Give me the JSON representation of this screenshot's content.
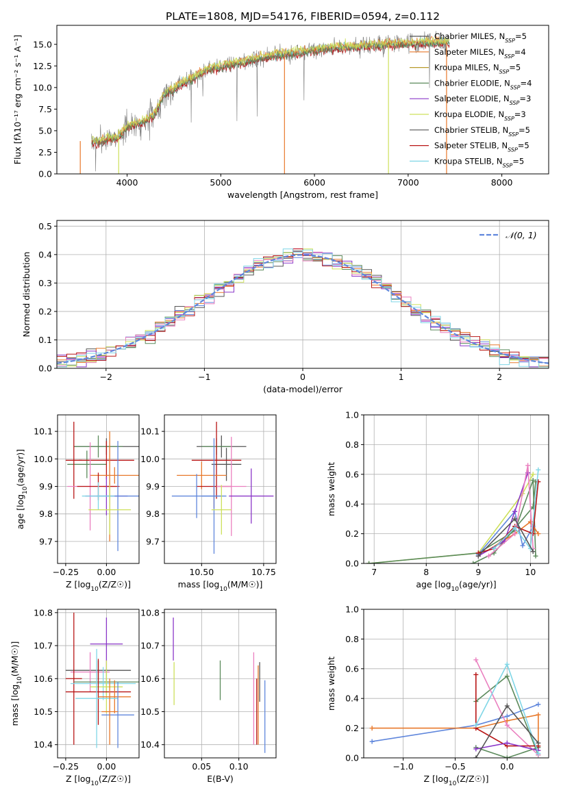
{
  "figure_title": "PLATE=1808, MJD=54176, FIBERID=0594, z=0.112",
  "colors": {
    "orange": "#e8782a",
    "blue": "#5f86dc",
    "green": "#5b8a5b",
    "purple": "#8a36c8",
    "pink": "#ea7fbf",
    "dark": "#555555",
    "red": "#b81414",
    "cyan": "#7fd6e6",
    "yellowgreen": "#cde05a",
    "gold": "#b89a2a"
  },
  "chart_data": [
    {
      "id": "spectrum",
      "type": "line",
      "title": "PLATE=1808, MJD=54176, FIBERID=0594, z=0.112",
      "xlabel": "wavelength [Angstrom, rest frame]",
      "ylabel": "Flux [fλ10⁻¹⁷ erg cm⁻² s⁻¹ A⁻¹]",
      "xlim": [
        3250,
        8500
      ],
      "ylim": [
        0,
        17.2
      ],
      "xticks": [
        "4000",
        "5000",
        "6000",
        "7000",
        "8000"
      ],
      "yticks": [
        "0.0",
        "2.5",
        "5.0",
        "7.5",
        "10.0",
        "12.5",
        "15.0"
      ],
      "grid": false,
      "legend_position": "top-right",
      "legend": [
        {
          "label": "Chabrier MILES, N",
          "sub": "SSP",
          "suffix": "=5",
          "color": "#555555"
        },
        {
          "label": "Salpeter MILES, N",
          "sub": "SSP",
          "suffix": "=4",
          "color": "#e8782a"
        },
        {
          "label": "Kroupa MILES, N",
          "sub": "SSP",
          "suffix": "=5",
          "color": "#b89a2a"
        },
        {
          "label": "Chabrier ELODIE, N",
          "sub": "SSP",
          "suffix": "=4",
          "color": "#5b8a5b"
        },
        {
          "label": "Salpeter ELODIE, N",
          "sub": "SSP",
          "suffix": "=3",
          "color": "#8a36c8"
        },
        {
          "label": "Kroupa ELODIE, N",
          "sub": "SSP",
          "suffix": "=3",
          "color": "#cde05a"
        },
        {
          "label": "Chabrier STELIB, N",
          "sub": "SSP",
          "suffix": "=5",
          "color": "#555555"
        },
        {
          "label": "Salpeter STELIB, N",
          "sub": "SSP",
          "suffix": "=5",
          "color": "#b81414"
        },
        {
          "label": "Kroupa STELIB, N",
          "sub": "SSP",
          "suffix": "=5",
          "color": "#7fd6e6"
        }
      ],
      "continuum": {
        "x": [
          3600,
          3700,
          3800,
          3900,
          4000,
          4100,
          4200,
          4300,
          4400,
          4500,
          4600,
          4700,
          4800,
          4900,
          5000,
          5200,
          5400,
          5600,
          5800,
          6000,
          6200,
          6400,
          6600,
          6800,
          7000,
          7200,
          7400
        ],
        "y": [
          3.8,
          3.6,
          4.1,
          4.2,
          5.5,
          5.8,
          6.2,
          7.0,
          9.3,
          9.8,
          10.6,
          11.0,
          11.8,
          12.2,
          12.4,
          12.9,
          13.4,
          13.8,
          14.0,
          14.3,
          14.6,
          14.7,
          14.9,
          15.0,
          15.1,
          15.2,
          15.2
        ]
      },
      "model_series": [
        {
          "color": "#7fd6e6",
          "offset": 0.0
        },
        {
          "color": "#b81414",
          "offset": -0.2
        },
        {
          "color": "#e8782a",
          "offset": 0.15
        },
        {
          "color": "#5b8a5b",
          "offset": -0.1
        },
        {
          "color": "#cde05a",
          "offset": 0.25
        }
      ],
      "spikes": [
        {
          "x": 3500,
          "color": "#e8782a"
        },
        {
          "x": 3910,
          "color": "#cde05a"
        },
        {
          "x": 5680,
          "color": "#e8782a"
        },
        {
          "x": 6790,
          "color": "#cde05a"
        },
        {
          "x": 7410,
          "color": "#e8782a"
        }
      ]
    },
    {
      "id": "residuals",
      "type": "step",
      "xlabel": "(data-model)/error",
      "ylabel": "Normed distribution",
      "xlim": [
        -2.5,
        2.5
      ],
      "ylim": [
        0,
        0.52
      ],
      "xticks": [
        "−2",
        "−1",
        "0",
        "1",
        "2"
      ],
      "yticks": [
        "0.0",
        "0.1",
        "0.2",
        "0.3",
        "0.4",
        "0.5"
      ],
      "grid": true,
      "legend": [
        {
          "label": "𝒩(0, 1)",
          "color": "#5f86dc",
          "style": "dashed"
        }
      ],
      "bin_width": 0.1,
      "series_colors": [
        "#555555",
        "#e8782a",
        "#5f86dc",
        "#5b8a5b",
        "#8a36c8",
        "#ea7fbf",
        "#cde05a",
        "#b81414",
        "#7fd6e6"
      ]
    },
    {
      "id": "age_vs_Z",
      "type": "errorbar",
      "xlabel": "Z [log10(Z/Z☉)]",
      "ylabel": "age [log10(age/yr)]",
      "xlim": [
        -0.3,
        0.2
      ],
      "ylim": [
        9.62,
        10.16
      ],
      "xticks": [
        "−0.25",
        "0.00"
      ],
      "yticks": [
        "9.7",
        "9.8",
        "9.9",
        "10.0",
        "10.1"
      ],
      "grid": true,
      "points": [
        {
          "x": 0.0,
          "y": 10.045,
          "xerr": 0.2,
          "yerr": 0.03,
          "color": "#555555"
        },
        {
          "x": -0.05,
          "y": 10.045,
          "xerr": 0.15,
          "yerr": 0.04,
          "color": "#5b8a5b"
        },
        {
          "x": -0.12,
          "y": 9.98,
          "xerr": 0.12,
          "yerr": 0.05,
          "color": "#5b8a5b"
        },
        {
          "x": -0.2,
          "y": 9.995,
          "xerr": 0.05,
          "yerr": 0.14,
          "color": "#b81414"
        },
        {
          "x": 0.0,
          "y": 9.995,
          "xerr": 0.17,
          "yerr": 0.07,
          "color": "#b81414"
        },
        {
          "x": 0.05,
          "y": 9.94,
          "xerr": 0.15,
          "yerr": 0.03,
          "color": "#e8782a"
        },
        {
          "x": 0.02,
          "y": 9.9,
          "xerr": 0.04,
          "yerr": 0.2,
          "color": "#e8782a"
        },
        {
          "x": -0.1,
          "y": 9.9,
          "xerr": 0.14,
          "yerr": 0.16,
          "color": "#ea7fbf"
        },
        {
          "x": -0.05,
          "y": 9.9,
          "xerr": 0.13,
          "yerr": 0.05,
          "color": "#b81414"
        },
        {
          "x": 0.0,
          "y": 9.865,
          "xerr": 0.13,
          "yerr": 0.07,
          "color": "#8a36c8"
        },
        {
          "x": 0.07,
          "y": 9.865,
          "xerr": 0.13,
          "yerr": 0.2,
          "color": "#5f86dc"
        },
        {
          "x": -0.05,
          "y": 9.865,
          "xerr": 0.1,
          "yerr": 0.05,
          "color": "#7fd6e6"
        },
        {
          "x": 0.02,
          "y": 9.815,
          "xerr": 0.13,
          "yerr": 0.09,
          "color": "#cde05a"
        }
      ]
    },
    {
      "id": "age_vs_mass",
      "type": "errorbar",
      "xlabel": "mass [log10(M/M☉)]",
      "ylabel": "",
      "xlim": [
        10.35,
        10.8
      ],
      "ylim": [
        9.62,
        10.16
      ],
      "xticks": [
        "10.50",
        "10.75"
      ],
      "yticks": [
        "9.7",
        "9.8",
        "9.9",
        "10.0",
        "10.1"
      ],
      "grid": true,
      "points": [
        {
          "x": 10.58,
          "y": 10.045,
          "xerr": 0.1,
          "yerr": 0.04,
          "color": "#555555"
        },
        {
          "x": 10.56,
          "y": 10.045,
          "xerr": 0.06,
          "yerr": 0.03,
          "color": "#5b8a5b"
        },
        {
          "x": 10.6,
          "y": 9.98,
          "xerr": 0.06,
          "yerr": 0.06,
          "color": "#555555"
        },
        {
          "x": 10.56,
          "y": 9.995,
          "xerr": 0.1,
          "yerr": 0.14,
          "color": "#b81414"
        },
        {
          "x": 10.5,
          "y": 9.94,
          "xerr": 0.1,
          "yerr": 0.05,
          "color": "#e8782a"
        },
        {
          "x": 10.55,
          "y": 9.9,
          "xerr": 0.07,
          "yerr": 0.08,
          "color": "#b81414"
        },
        {
          "x": 10.62,
          "y": 9.9,
          "xerr": 0.06,
          "yerr": 0.18,
          "color": "#ea7fbf"
        },
        {
          "x": 10.7,
          "y": 9.865,
          "xerr": 0.09,
          "yerr": 0.1,
          "color": "#8a36c8"
        },
        {
          "x": 10.48,
          "y": 9.865,
          "xerr": 0.1,
          "yerr": 0.08,
          "color": "#5f86dc"
        },
        {
          "x": 10.55,
          "y": 9.865,
          "xerr": 0.05,
          "yerr": 0.21,
          "color": "#5f86dc"
        },
        {
          "x": 10.58,
          "y": 9.815,
          "xerr": 0.04,
          "yerr": 0.09,
          "color": "#cde05a"
        }
      ]
    },
    {
      "id": "weight_vs_age",
      "type": "line",
      "xlabel": "age [log10(age/yr)]",
      "ylabel": "mass weight",
      "xlim": [
        6.8,
        10.35
      ],
      "ylim": [
        0,
        1
      ],
      "xticks": [
        "7",
        "8",
        "9",
        "10"
      ],
      "yticks": [
        "0.0",
        "0.2",
        "0.4",
        "0.6",
        "0.8",
        "1.0"
      ],
      "grid": true,
      "series": [
        {
          "color": "#cde05a",
          "x": [
            6.9,
            9.0,
            9.85,
            10.05
          ],
          "y": [
            0.0,
            0.07,
            0.47,
            0.6
          ]
        },
        {
          "color": "#5b8a5b",
          "x": [
            6.9,
            9.0,
            9.7,
            10.05,
            10.1
          ],
          "y": [
            0.0,
            0.07,
            0.22,
            0.56,
            0.05
          ]
        },
        {
          "color": "#5b8a5b",
          "x": [
            8.9,
            9.3,
            10.05,
            10.1
          ],
          "y": [
            0.0,
            0.07,
            0.38,
            0.55
          ]
        },
        {
          "color": "#e8782a",
          "x": [
            9.0,
            9.7,
            10.0,
            10.15
          ],
          "y": [
            0.05,
            0.2,
            0.28,
            0.2
          ]
        },
        {
          "color": "#5f86dc",
          "x": [
            9.0,
            9.7,
            9.85,
            10.05
          ],
          "y": [
            0.06,
            0.35,
            0.12,
            0.25
          ]
        },
        {
          "color": "#8a36c8",
          "x": [
            9.0,
            9.5,
            9.7,
            9.95
          ],
          "y": [
            0.05,
            0.15,
            0.35,
            0.61
          ]
        },
        {
          "color": "#b81414",
          "x": [
            9.0,
            9.3,
            9.7,
            10.05,
            10.15
          ],
          "y": [
            0.07,
            0.1,
            0.25,
            0.2,
            0.55
          ]
        },
        {
          "color": "#ea7fbf",
          "x": [
            9.2,
            9.7,
            9.95,
            10.05
          ],
          "y": [
            0.05,
            0.2,
            0.66,
            0.1
          ]
        },
        {
          "color": "#7fd6e6",
          "x": [
            9.3,
            9.7,
            10.0,
            10.15
          ],
          "y": [
            0.1,
            0.24,
            0.1,
            0.63
          ]
        },
        {
          "color": "#555555",
          "x": [
            9.0,
            9.7,
            10.05
          ],
          "y": [
            0.05,
            0.3,
            0.08
          ]
        }
      ]
    },
    {
      "id": "mass_vs_Z",
      "type": "errorbar",
      "xlabel": "Z [log10(Z/Z☉)]",
      "ylabel": "mass [log10(M/M☉)]",
      "xlim": [
        -0.3,
        0.2
      ],
      "ylim": [
        10.36,
        10.81
      ],
      "xticks": [
        "−0.25",
        "0.00"
      ],
      "yticks": [
        "10.4",
        "10.5",
        "10.6",
        "10.7",
        "10.8"
      ],
      "grid": true,
      "points": [
        {
          "x": 0.0,
          "y": 10.705,
          "xerr": 0.1,
          "yerr": 0.08,
          "color": "#8a36c8"
        },
        {
          "x": -0.05,
          "y": 10.625,
          "xerr": 0.2,
          "yerr": 0.03,
          "color": "#555555"
        },
        {
          "x": -0.1,
          "y": 10.62,
          "xerr": 0.12,
          "yerr": 0.06,
          "color": "#ea7fbf"
        },
        {
          "x": -0.2,
          "y": 10.6,
          "xerr": 0.05,
          "yerr": 0.2,
          "color": "#b81414"
        },
        {
          "x": 0.0,
          "y": 10.59,
          "xerr": 0.2,
          "yerr": 0.04,
          "color": "#5b8a5b"
        },
        {
          "x": -0.02,
          "y": 10.585,
          "xerr": 0.2,
          "yerr": 0.05,
          "color": "#7fd6e6"
        },
        {
          "x": 0.0,
          "y": 10.575,
          "xerr": 0.1,
          "yerr": 0.08,
          "color": "#cde05a"
        },
        {
          "x": -0.05,
          "y": 10.56,
          "xerr": 0.2,
          "yerr": 0.1,
          "color": "#b81414"
        },
        {
          "x": 0.05,
          "y": 10.545,
          "xerr": 0.1,
          "yerr": 0.05,
          "color": "#e8782a"
        },
        {
          "x": -0.06,
          "y": 10.54,
          "xerr": 0.13,
          "yerr": 0.15,
          "color": "#7fd6e6"
        },
        {
          "x": 0.07,
          "y": 10.49,
          "xerr": 0.1,
          "yerr": 0.1,
          "color": "#5f86dc"
        },
        {
          "x": 0.02,
          "y": 10.5,
          "xerr": 0.05,
          "yerr": 0.1,
          "color": "#e8782a"
        }
      ]
    },
    {
      "id": "mass_vs_EBV",
      "type": "errorbar",
      "xlabel": "E(B-V)",
      "ylabel": "",
      "xlim": [
        0.0,
        0.15
      ],
      "ylim": [
        10.36,
        10.81
      ],
      "xticks": [
        "0.05",
        "0.10"
      ],
      "yticks": [
        "10.4",
        "10.5",
        "10.6",
        "10.7",
        "10.8"
      ],
      "grid": true,
      "points": [
        {
          "x": 0.012,
          "y": 10.72,
          "xerr": 0,
          "yerr": 0.065,
          "color": "#8a36c8"
        },
        {
          "x": 0.013,
          "y": 10.585,
          "xerr": 0,
          "yerr": 0.065,
          "color": "#cde05a"
        },
        {
          "x": 0.075,
          "y": 10.595,
          "xerr": 0,
          "yerr": 0.06,
          "color": "#5b8a5b"
        },
        {
          "x": 0.12,
          "y": 10.54,
          "xerr": 0,
          "yerr": 0.14,
          "color": "#ea7fbf"
        },
        {
          "x": 0.124,
          "y": 10.5,
          "xerr": 0,
          "yerr": 0.1,
          "color": "#b81414"
        },
        {
          "x": 0.126,
          "y": 10.52,
          "xerr": 0,
          "yerr": 0.12,
          "color": "#e8782a"
        },
        {
          "x": 0.128,
          "y": 10.59,
          "xerr": 0,
          "yerr": 0.06,
          "color": "#555555"
        },
        {
          "x": 0.135,
          "y": 10.485,
          "xerr": 0,
          "yerr": 0.11,
          "color": "#5f86dc"
        }
      ]
    },
    {
      "id": "weight_vs_Z",
      "type": "line",
      "xlabel": "Z [log10(Z/Z☉)]",
      "ylabel": "mass weight",
      "xlim": [
        -1.38,
        0.4
      ],
      "ylim": [
        0,
        1
      ],
      "xticks": [
        "−1.0",
        "−0.5",
        "0.0"
      ],
      "yticks": [
        "0.0",
        "0.2",
        "0.4",
        "0.6",
        "0.8",
        "1.0"
      ],
      "grid": true,
      "series": [
        {
          "color": "#5f86dc",
          "x": [
            -1.3,
            -0.3,
            0.0,
            0.3
          ],
          "y": [
            0.11,
            0.22,
            0.28,
            0.36
          ]
        },
        {
          "color": "#e8782a",
          "x": [
            -1.3,
            -0.3,
            0.0,
            0.3,
            0.3
          ],
          "y": [
            0.2,
            0.2,
            0.25,
            0.29,
            0.05
          ]
        },
        {
          "color": "#5b8a5b",
          "x": [
            -0.3,
            0.0,
            0.3
          ],
          "y": [
            0.38,
            0.55,
            0.02
          ]
        },
        {
          "color": "#5b8a5b",
          "x": [
            -0.3,
            0.0,
            0.3
          ],
          "y": [
            0.07,
            0.0,
            0.07
          ]
        },
        {
          "color": "#ea7fbf",
          "x": [
            -0.3,
            0.0,
            0.3
          ],
          "y": [
            0.66,
            0.22,
            0.02
          ]
        },
        {
          "color": "#b81414",
          "x": [
            -0.3,
            -0.3,
            0.0,
            0.3
          ],
          "y": [
            0.56,
            0.2,
            0.08,
            0.08
          ]
        },
        {
          "color": "#8a36c8",
          "x": [
            -0.3,
            0.0,
            0.3
          ],
          "y": [
            0.06,
            0.1,
            0.05
          ]
        },
        {
          "color": "#7fd6e6",
          "x": [
            -0.3,
            0.0,
            0.3
          ],
          "y": [
            0.22,
            0.63,
            0.03
          ]
        },
        {
          "color": "#555555",
          "x": [
            -0.3,
            0.0,
            0.3
          ],
          "y": [
            0.0,
            0.35,
            0.1
          ]
        }
      ]
    }
  ]
}
